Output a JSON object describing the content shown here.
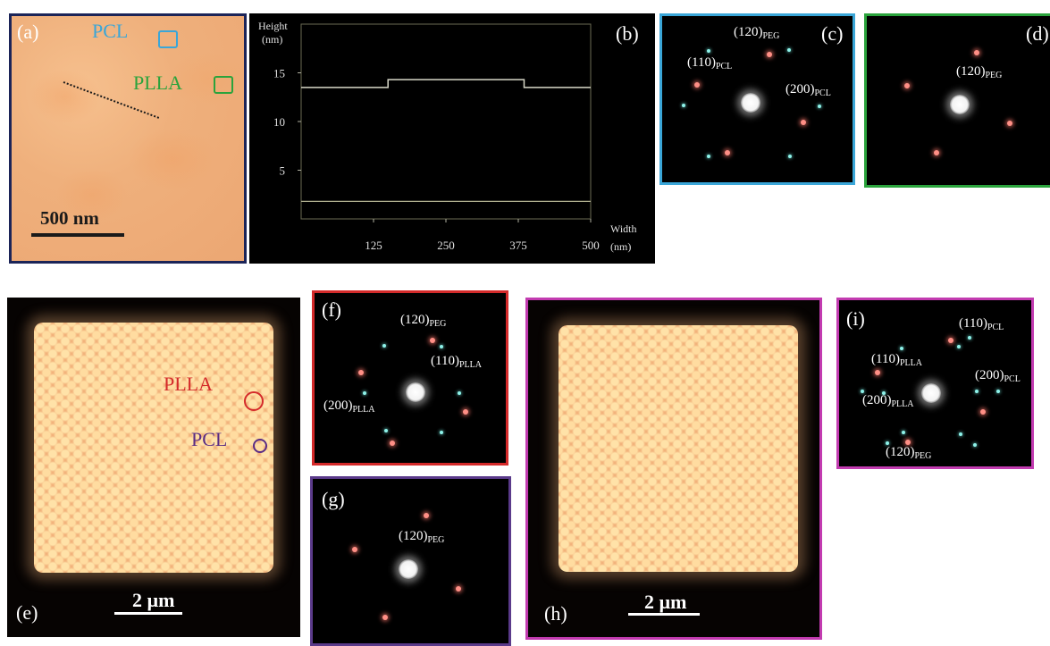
{
  "panels": {
    "a": {
      "label": "(a)",
      "pcl": "PCL",
      "plla": "PLLA",
      "scale": "500 nm",
      "colors": {
        "frame": "#1b2458",
        "pcl": "#3aa6d8",
        "plla": "#2aa33c"
      }
    },
    "b": {
      "label": "(b)",
      "ylabel1": "Height",
      "ylabel2": "(nm)",
      "xlabel1": "Width",
      "xlabel2": "(nm)",
      "yticks": [
        "15",
        "10",
        "5"
      ],
      "xticks": [
        "125",
        "250",
        "375",
        "500"
      ]
    },
    "c": {
      "label": "(c)",
      "ann1": "(120)",
      "ann1_sub": "PEG",
      "ann2": "(110)",
      "ann2_sub": "PCL",
      "ann3": "(200)",
      "ann3_sub": "PCL",
      "colors": {
        "frame": "#3aa6d8"
      }
    },
    "d": {
      "label": "(d)",
      "ann1": "(120)",
      "ann1_sub": "PEG",
      "colors": {
        "frame": "#2aa33c"
      }
    },
    "e": {
      "label": "(e)",
      "plla": "PLLA",
      "pcl": "PCL",
      "scale": "2 µm",
      "colors": {
        "plla": "#d42a2a",
        "pcl": "#5a2c84"
      }
    },
    "f": {
      "label": "(f)",
      "ann1": "(120)",
      "ann1_sub": "PEG",
      "ann2": "(110)",
      "ann2_sub": "PLLA",
      "ann3": "(200)",
      "ann3_sub": "PLLA",
      "colors": {
        "frame": "#d42a2a"
      }
    },
    "g": {
      "label": "(g)",
      "ann1": "(120)",
      "ann1_sub": "PEG",
      "colors": {
        "frame": "#5a3a8a"
      }
    },
    "h": {
      "label": "(h)",
      "scale": "2 µm",
      "colors": {
        "frame": "#c23bb0"
      }
    },
    "i": {
      "label": "(i)",
      "ann1": "(110)",
      "ann1_sub": "PCL",
      "ann2": "(110)",
      "ann2_sub": "PLLA",
      "ann3": "(200)",
      "ann3_sub": "PCL",
      "ann4": "(200)",
      "ann4_sub": "PLLA",
      "ann5": "(120)",
      "ann5_sub": "PEG",
      "colors": {
        "frame": "#c23bb0"
      }
    }
  },
  "chart_data": {
    "type": "line",
    "title": "",
    "xlabel": "Width (nm)",
    "ylabel": "Height (nm)",
    "xlim": [
      0,
      500
    ],
    "ylim": [
      0,
      20
    ],
    "x": [
      0,
      150,
      150,
      385,
      385,
      500
    ],
    "series": [
      {
        "values": [
          13.5,
          13.5,
          14.3,
          14.3,
          13.5,
          13.5
        ]
      }
    ],
    "grid": false
  }
}
